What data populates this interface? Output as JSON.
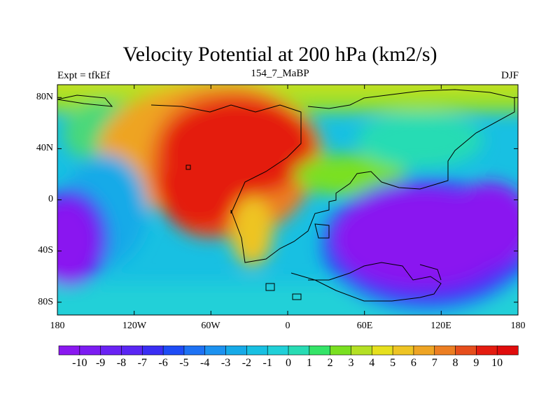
{
  "header": {
    "title": "Velocity Potential at 200 hPa (km2/s)",
    "left_label": "Expt = tfkEf",
    "center_label": "154_7_MaBP",
    "right_label": "DJF"
  },
  "axes": {
    "x_ticks": [
      "180",
      "120W",
      "60W",
      "0",
      "60E",
      "120E",
      "180"
    ],
    "y_ticks": [
      "80N",
      "40N",
      "0",
      "40S",
      "80S"
    ]
  },
  "colorbar": {
    "labels": [
      "-10",
      "-9",
      "-8",
      "-7",
      "-6",
      "-5",
      "-4",
      "-3",
      "-2",
      "-1",
      "0",
      "1",
      "2",
      "3",
      "4",
      "5",
      "6",
      "7",
      "8",
      "9",
      "10"
    ],
    "levels_min": -10,
    "levels_max": 10,
    "colors": [
      "#8a18f0",
      "#7c1cf2",
      "#6a22f4",
      "#5a26f4",
      "#3a2ef4",
      "#1e4cf6",
      "#1e72f4",
      "#1c92f0",
      "#16aae8",
      "#18c0e2",
      "#20d0d8",
      "#28dcb4",
      "#34e468",
      "#7ae020",
      "#b4e024",
      "#e6e01e",
      "#eec424",
      "#eea424",
      "#ec7e22",
      "#e64e1c",
      "#e41c10",
      "#e00c0c"
    ]
  },
  "map": {
    "projection": "cylindrical-equidistant",
    "lon_range": [
      -180,
      180
    ],
    "lat_range": [
      -90,
      90
    ],
    "field": "velocity potential",
    "units": "km2/s",
    "features": [
      {
        "type": "maximum",
        "lon": -50,
        "lat": 30,
        "value": 10
      },
      {
        "type": "minimum",
        "lon": 110,
        "lat": -25,
        "value": -10
      },
      {
        "type": "minimum",
        "lon": -175,
        "lat": -25,
        "value": -9
      }
    ]
  }
}
